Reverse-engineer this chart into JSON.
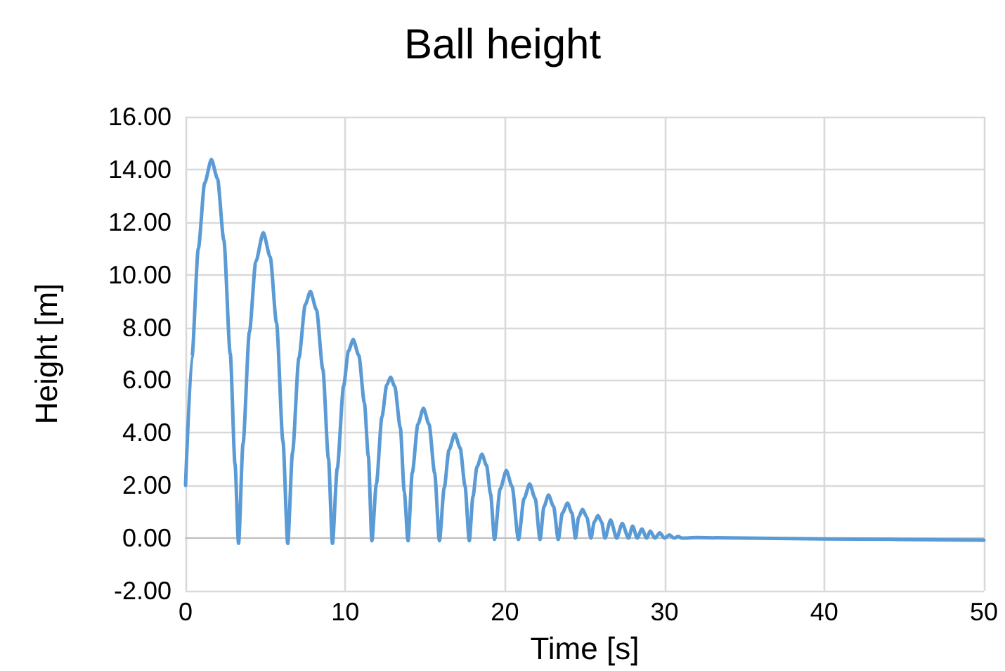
{
  "chart_data": {
    "type": "line",
    "title": "Ball height",
    "xlabel": "Time [s]",
    "ylabel": "Height [m]",
    "x": [
      0,
      0.4,
      0.8,
      1.2,
      1.62,
      2.0,
      2.4,
      2.8,
      3.1,
      3.32,
      3.6,
      4.0,
      4.4,
      4.87,
      5.3,
      5.7,
      6.1,
      6.4,
      6.7,
      7.1,
      7.5,
      7.82,
      8.2,
      8.6,
      8.95,
      9.2,
      9.5,
      9.9,
      10.2,
      10.5,
      10.85,
      11.2,
      11.45,
      11.67,
      11.95,
      12.3,
      12.6,
      12.84,
      13.1,
      13.45,
      13.7,
      13.93,
      14.2,
      14.55,
      14.9,
      15.25,
      15.6,
      15.9,
      16.2,
      16.5,
      16.86,
      17.2,
      17.5,
      17.77,
      18.0,
      18.25,
      18.56,
      18.85,
      19.1,
      19.35,
      19.7,
      20.09,
      20.45,
      20.85,
      21.2,
      21.55,
      21.9,
      22.2,
      22.45,
      22.73,
      23.05,
      23.34,
      23.6,
      23.92,
      24.2,
      24.42,
      24.62,
      24.86,
      25.13,
      25.39,
      25.6,
      25.83,
      26.05,
      26.27,
      26.62,
      27.0,
      27.35,
      27.74,
      28.0,
      28.29,
      28.58,
      28.88,
      29.1,
      29.4,
      29.7,
      30.0,
      30.3,
      30.6,
      30.85,
      31.1,
      32,
      40,
      50
    ],
    "series": [
      {
        "color": "#5b9bd5",
        "values": [
          2,
          6.87,
          10.99,
          13.49,
          14.38,
          13.65,
          11.31,
          7.0,
          2.8,
          -0.2,
          3.58,
          7.83,
          10.5,
          11.6,
          10.68,
          8.16,
          3.69,
          -0.2,
          3.25,
          6.84,
          8.87,
          9.37,
          8.67,
          6.4,
          3.02,
          -0.2,
          2.64,
          5.78,
          7.1,
          7.54,
          6.94,
          5.14,
          3.1,
          -0.1,
          2.05,
          4.61,
          5.81,
          6.11,
          5.76,
          4.2,
          1.76,
          -0.1,
          2.48,
          4.32,
          4.93,
          4.32,
          2.48,
          -0.1,
          1.91,
          3.35,
          3.96,
          3.42,
          2.0,
          -0.1,
          1.58,
          2.7,
          3.19,
          2.76,
          1.69,
          -0.05,
          1.86,
          2.57,
          1.96,
          -0.05,
          1.5,
          2.06,
          1.5,
          -0.05,
          1.2,
          1.64,
          1.2,
          -0.05,
          0.95,
          1.33,
          0.95,
          0,
          0.8,
          1.1,
          0.8,
          0,
          0.62,
          0.86,
          0.62,
          0,
          0.69,
          0,
          0.56,
          0,
          0.46,
          0,
          0.35,
          0,
          0.27,
          0,
          0.2,
          0,
          0.12,
          0,
          0.06,
          0,
          0.02,
          -0.03,
          -0.08
        ]
      }
    ],
    "xlim": [
      0,
      50
    ],
    "xticks": [
      0,
      10,
      20,
      30,
      40,
      50
    ],
    "ylim": [
      -2,
      16
    ],
    "yticks": [
      {
        "value": -2,
        "label": "-2.00"
      },
      {
        "value": 0,
        "label": "0.00"
      },
      {
        "value": 2,
        "label": "2.00"
      },
      {
        "value": 4,
        "label": "4.00"
      },
      {
        "value": 6,
        "label": "6.00"
      },
      {
        "value": 8,
        "label": "8.00"
      },
      {
        "value": 10,
        "label": "10.00"
      },
      {
        "value": 12,
        "label": "12.00"
      },
      {
        "value": 14,
        "label": "14.00"
      },
      {
        "value": 16,
        "label": "16.00"
      }
    ],
    "grid": true,
    "marker": "none",
    "line_style": "solid"
  }
}
